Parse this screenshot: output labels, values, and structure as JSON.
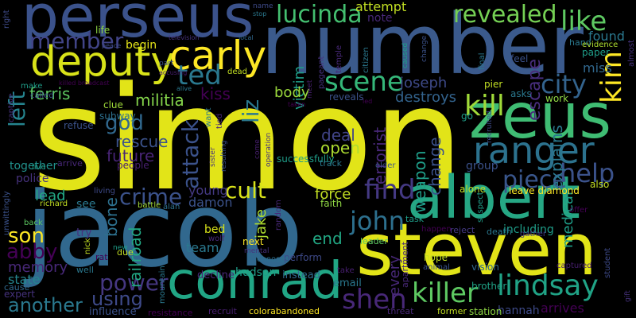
{
  "words": {
    "simon": {
      "text": "simon",
      "color": "#e2e418"
    },
    "jacob": {
      "text": "jacob",
      "color": "#31688e"
    },
    "number": {
      "text": "number",
      "color": "#3b5a8c"
    },
    "steven": {
      "text": "steven",
      "color": "#e2e418"
    },
    "perseus": {
      "text": "perseus",
      "color": "#3b528b"
    },
    "zeus": {
      "text": "zeus",
      "color": "#3fbc73"
    },
    "albert": {
      "text": "albert",
      "color": "#26a784"
    },
    "conrad": {
      "text": "conrad",
      "color": "#21a685"
    },
    "deputy": {
      "text": "deputy",
      "color": "#d8e219"
    },
    "ranger": {
      "text": "ranger",
      "color": "#2c728e"
    },
    "carly": {
      "text": "carly",
      "color": "#fde725"
    },
    "lucinda": {
      "text": "lucinda",
      "color": "#44bf70"
    },
    "revealed": {
      "text": "revealed",
      "color": "#75d054"
    },
    "like": {
      "text": "like",
      "color": "#5ec962"
    },
    "member": {
      "text": "member",
      "color": "#414487"
    },
    "ted": {
      "text": "ted",
      "color": "#2a788e"
    },
    "scene": {
      "text": "scene",
      "color": "#35b779"
    },
    "kill": {
      "text": "kill",
      "color": "#a0da39"
    },
    "kim": {
      "text": "kim",
      "color": "#fde725"
    },
    "city": {
      "text": "city",
      "color": "#33638d"
    },
    "find": {
      "text": "find",
      "color": "#443983"
    },
    "lindsay": {
      "text": "lindsay",
      "color": "#20a386"
    },
    "killer": {
      "text": "killer",
      "color": "#5ec962"
    },
    "shen": {
      "text": "shen",
      "color": "#482878"
    },
    "piece": {
      "text": "piece",
      "color": "#39568c"
    },
    "help": {
      "text": "help",
      "color": "#3b528b"
    },
    "john": {
      "text": "john",
      "color": "#2d708e"
    },
    "power": {
      "text": "power",
      "color": "#453781"
    },
    "son": {
      "text": "son",
      "color": "#fde725"
    },
    "abby": {
      "text": "abby",
      "color": "#440154"
    },
    "another": {
      "text": "another",
      "color": "#2a788e"
    },
    "crime": {
      "text": "crime",
      "color": "#3b528b"
    },
    "cult": {
      "text": "cult",
      "color": "#d8e219"
    },
    "god": {
      "text": "god",
      "color": "#31688e"
    },
    "left": {
      "text": "left",
      "color": "#25848e"
    },
    "liz": {
      "text": "liz",
      "color": "#2a788e"
    },
    "attack": {
      "text": "attack",
      "color": "#3b528b"
    },
    "using": {
      "text": "using",
      "color": "#3e4a89"
    },
    "found": {
      "text": "found",
      "color": "#2a788e"
    },
    "miss": {
      "text": "miss",
      "color": "#31688e"
    },
    "escape": {
      "text": "escape",
      "color": "#472d7b"
    },
    "ferris": {
      "text": "ferris",
      "color": "#5ec962"
    },
    "militia": {
      "text": "militia",
      "color": "#84d44b"
    },
    "rescue": {
      "text": "rescue",
      "color": "#3b528b"
    },
    "future": {
      "text": "future",
      "color": "#482475"
    },
    "deal": {
      "text": "deal",
      "color": "#414487"
    },
    "open": {
      "text": "open",
      "color": "#addc30"
    },
    "force": {
      "text": "force",
      "color": "#c2df23"
    },
    "end": {
      "text": "end",
      "color": "#22a884"
    },
    "lead": {
      "text": "lead",
      "color": "#22a884"
    },
    "memory": {
      "text": "memory",
      "color": "#482878"
    },
    "state": {
      "text": "state",
      "color": "#25858e"
    },
    "team": {
      "text": "team",
      "color": "#2a788e"
    },
    "damon": {
      "text": "damon",
      "color": "#3b528b"
    },
    "young": {
      "text": "young",
      "color": "#443983"
    },
    "bone": {
      "text": "bone",
      "color": "#2d708e"
    },
    "railroad": {
      "text": "railroad",
      "color": "#22a884"
    },
    "jake": {
      "text": "jake",
      "color": "#addc30"
    },
    "terrorist": {
      "text": "terrorist",
      "color": "#482878"
    },
    "weapon": {
      "text": "weapon",
      "color": "#1f9e89"
    },
    "change": {
      "text": "change",
      "color": "#3b528b"
    },
    "group": {
      "text": "group",
      "color": "#3b528b"
    },
    "explains": {
      "text": "explains",
      "color": "#2a788e"
    },
    "medical": {
      "text": "medical",
      "color": "#1f9e89"
    },
    "joseph": {
      "text": "joseph",
      "color": "#3e4a89"
    },
    "destroys": {
      "text": "destroys",
      "color": "#33638d"
    },
    "victim": {
      "text": "victim",
      "color": "#1f9e89"
    },
    "body": {
      "text": "body",
      "color": "#9bd93c"
    },
    "kiss": {
      "text": "kiss",
      "color": "#440154"
    },
    "attempt": {
      "text": "attempt",
      "color": "#c2df23"
    },
    "note": {
      "text": "note",
      "color": "#482878"
    },
    "begin": {
      "text": "begin",
      "color": "#e5e419"
    },
    "together": {
      "text": "together",
      "color": "#21918c"
    },
    "police": {
      "text": "police",
      "color": "#46327e"
    },
    "see": {
      "text": "see",
      "color": "#2a788e"
    },
    "try": {
      "text": "try",
      "color": "#46327e"
    },
    "bed": {
      "text": "bed",
      "color": "#d8e219"
    },
    "next": {
      "text": "next",
      "color": "#fde725"
    },
    "every": {
      "text": "every",
      "color": "#482878"
    },
    "perform": {
      "text": "perform",
      "color": "#3e4a89"
    },
    "hope": {
      "text": "hope",
      "color": "#c2df23"
    },
    "alone": {
      "text": "alone",
      "color": "#bddf26"
    },
    "leave_diamond": {
      "text": "leave diamond",
      "color": "#fde725"
    },
    "including": {
      "text": "including",
      "color": "#1f9e89"
    },
    "hannah": {
      "text": "hannah",
      "color": "#3e4a89"
    },
    "arrives": {
      "text": "arrives",
      "color": "#440154"
    },
    "brother": {
      "text": "brother",
      "color": "#20a386"
    },
    "vision": {
      "text": "vision",
      "color": "#31688e"
    },
    "station": {
      "text": "station",
      "color": "#8fd744"
    },
    "former": {
      "text": "former",
      "color": "#c2df23"
    },
    "threat": {
      "text": "threat",
      "color": "#482878"
    },
    "email": {
      "text": "email",
      "color": "#2a788e"
    },
    "instead": {
      "text": "instead",
      "color": "#31688e"
    },
    "chooses": {
      "text": "chooses",
      "color": "#2d708e"
    },
    "hudson": {
      "text": "hudson",
      "color": "#1f9e89"
    },
    "decline": {
      "text": "decline",
      "color": "#482878"
    },
    "recruit": {
      "text": "recruit",
      "color": "#481f70"
    },
    "colorabandoned": {
      "text": "colorabandoned",
      "color": "#fde725"
    },
    "resistance": {
      "text": "resistance",
      "color": "#440154"
    },
    "influence": {
      "text": "influence",
      "color": "#3b528b"
    },
    "expert": {
      "text": "expert",
      "color": "#46327e"
    },
    "cause": {
      "text": "cause",
      "color": "#31688e"
    },
    "well": {
      "text": "well",
      "color": "#2a788e"
    },
    "rat": {
      "text": "rat",
      "color": "#440154"
    },
    "due": {
      "text": "due",
      "color": "#c2df23"
    },
    "new": {
      "text": "new",
      "color": "#1f9e89"
    },
    "mountain": {
      "text": "mountain",
      "color": "#2a788e"
    },
    "wolf": {
      "text": "wolf",
      "color": "#482878"
    },
    "mental": {
      "text": "mental",
      "color": "#46327e"
    },
    "battle": {
      "text": "battle",
      "color": "#a0da39"
    },
    "alan": {
      "text": "alan",
      "color": "#2d708e"
    },
    "richard": {
      "text": "richard",
      "color": "#c2df23"
    },
    "back": {
      "text": "back",
      "color": "#5ec962"
    },
    "unwittingly": {
      "text": "unwittingly",
      "color": "#3b528b"
    },
    "living": {
      "text": "living",
      "color": "#3e4a89"
    },
    "nick": {
      "text": "nick",
      "color": "#c2df23"
    },
    "people": {
      "text": "people",
      "color": "#481f70"
    },
    "arrive": {
      "text": "arrive",
      "color": "#482878"
    },
    "live": {
      "text": "live",
      "color": "#1f9e89"
    },
    "refuse": {
      "text": "refuse",
      "color": "#3b528b"
    },
    "subway": {
      "text": "subway",
      "color": "#2d708e"
    },
    "clue": {
      "text": "clue",
      "color": "#a0da39"
    },
    "want": {
      "text": "want",
      "color": "#2a788e"
    },
    "tied": {
      "text": "tied",
      "color": "#482878"
    },
    "sister": {
      "text": "sister",
      "color": "#46327e"
    },
    "resulting": {
      "text": "resulting",
      "color": "#3b528b"
    },
    "successfully": {
      "text": "successfully",
      "color": "#1f9e89"
    },
    "come": {
      "text": "come",
      "color": "#481f70"
    },
    "operation": {
      "text": "operation",
      "color": "#46327e"
    },
    "random": {
      "text": "random",
      "color": "#482878"
    },
    "faith": {
      "text": "faith",
      "color": "#8fd744"
    },
    "task": {
      "text": "task",
      "color": "#1f9e89"
    },
    "leader": {
      "text": "leader",
      "color": "#5ec962"
    },
    "reject": {
      "text": "reject",
      "color": "#443983"
    },
    "apartment": {
      "text": "apartment",
      "color": "#482878"
    },
    "animal": {
      "text": "animal",
      "color": "#3b528b"
    },
    "take": {
      "text": "take",
      "color": "#481f70"
    },
    "happen": {
      "text": "happen",
      "color": "#440154"
    },
    "suspect": {
      "text": "suspect",
      "color": "#1f9e89"
    },
    "death": {
      "text": "death",
      "color": "#2a788e"
    },
    "gather": {
      "text": "gather",
      "color": "#443983"
    },
    "offer": {
      "text": "offer",
      "color": "#440154"
    },
    "captured": {
      "text": "captured",
      "color": "#481f70"
    },
    "student": {
      "text": "student",
      "color": "#3e4a89"
    },
    "gift": {
      "text": "gift",
      "color": "#46327e"
    },
    "also": {
      "text": "also",
      "color": "#c2df23"
    },
    "elder": {
      "text": "elder",
      "color": "#3b528b"
    },
    "track": {
      "text": "track",
      "color": "#2a788e"
    },
    "go": {
      "text": "go",
      "color": "#1f9e89"
    },
    "recruited": {
      "text": "recruited",
      "color": "#3e4a89"
    },
    "work": {
      "text": "work",
      "color": "#8fd744"
    },
    "asks": {
      "text": "asks",
      "color": "#2a788e"
    },
    "pier": {
      "text": "pier",
      "color": "#c2df23"
    },
    "feel": {
      "text": "feel",
      "color": "#3b528b"
    },
    "hand": {
      "text": "hand",
      "color": "#2a788e"
    },
    "paper": {
      "text": "paper",
      "color": "#1f9e89"
    },
    "evidence": {
      "text": "evidence",
      "color": "#addc30"
    },
    "almost": {
      "text": "almost",
      "color": "#46327e"
    },
    "final": {
      "text": "final",
      "color": "#2a788e"
    },
    "change2": {
      "text": "change",
      "color": "#3b528b"
    },
    "caused": {
      "text": "caused",
      "color": "#1f9e89"
    },
    "citizen": {
      "text": "citizen",
      "color": "#2a788e"
    },
    "temple": {
      "text": "temple",
      "color": "#482878"
    },
    "pageant": {
      "text": "pageant",
      "color": "#46327e"
    },
    "reveals": {
      "text": "reveals",
      "color": "#3b528b"
    },
    "meet": {
      "text": "meet",
      "color": "#481f70"
    },
    "taken": {
      "text": "taken",
      "color": "#440154"
    },
    "name": {
      "text": "name",
      "color": "#3e4a89"
    },
    "stop": {
      "text": "stop",
      "color": "#2a788e"
    },
    "dead": {
      "text": "dead",
      "color": "#c2df23"
    },
    "local": {
      "text": "local",
      "color": "#31688e"
    },
    "television": {
      "text": "television",
      "color": "#46327e"
    },
    "part": {
      "text": "part",
      "color": "#3b528b"
    },
    "accusing": {
      "text": "accusing",
      "color": "#481f70"
    },
    "alive": {
      "text": "alive",
      "color": "#2a788e"
    },
    "peace": {
      "text": "peace",
      "color": "#3e4a89"
    },
    "killed_broadcast": {
      "text": "killed broadcast",
      "color": "#440154"
    },
    "make": {
      "text": "make",
      "color": "#1f9e89"
    },
    "called": {
      "text": "called",
      "color": "#3b528b"
    },
    "captive": {
      "text": "captive",
      "color": "#46327e"
    },
    "life": {
      "text": "life",
      "color": "#8fd744"
    },
    "right": {
      "text": "right",
      "color": "#3e4a89"
    },
    "led": {
      "text": "led",
      "color": "#440154"
    }
  }
}
